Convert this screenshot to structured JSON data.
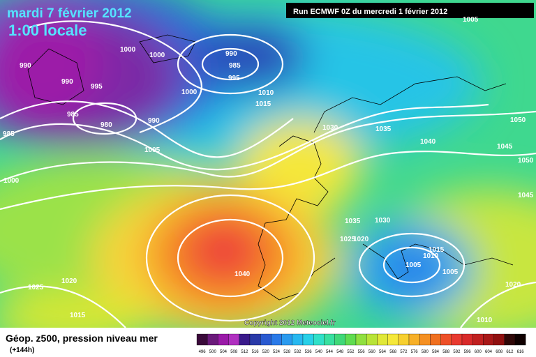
{
  "header": {
    "date": "mardi 7 février 2012",
    "time": "1:00 locale",
    "run": "Run ECMWF 0Z du mercredi 1 février 2012"
  },
  "copyright": "Copyright 2012 Meteociel.fr",
  "legend": {
    "title": "Géop. z500, pression niveau mer",
    "subtitle": "(+144h)",
    "levels": [
      496,
      500,
      504,
      508,
      512,
      516,
      520,
      524,
      528,
      532,
      536,
      540,
      544,
      548,
      552,
      556,
      560,
      564,
      568,
      572,
      576,
      580,
      584,
      588,
      592,
      596,
      600,
      604,
      608,
      612,
      616
    ]
  },
  "isobar_labels": [
    990,
    990,
    985,
    1000,
    1000,
    995,
    990,
    985,
    995,
    985,
    980,
    990,
    1000,
    1010,
    1015,
    1005,
    1000,
    1030,
    1035,
    1040,
    1045,
    1050,
    1050,
    1045,
    1005,
    1035,
    1030,
    1025,
    1020,
    1015,
    1010,
    1005,
    1005,
    1040,
    1025,
    1020,
    1015,
    1020,
    1010
  ]
}
